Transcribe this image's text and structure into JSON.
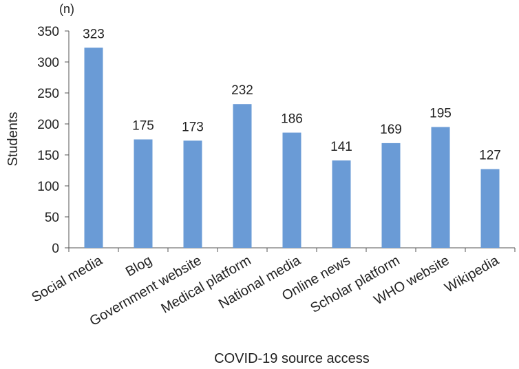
{
  "chart_data": {
    "type": "bar",
    "categories": [
      "Social media",
      "Blog",
      "Government website",
      "Medical platform",
      "National media",
      "Online news",
      "Scholar platform",
      "WHO website",
      "Wikipedia"
    ],
    "values": [
      323,
      175,
      173,
      232,
      186,
      141,
      169,
      195,
      127
    ],
    "xlabel": "COVID-19 source access",
    "ylabel": "Students",
    "unit_label": "(n)",
    "ylim": [
      0,
      350
    ],
    "yticks": [
      0,
      50,
      100,
      150,
      200,
      250,
      300,
      350
    ],
    "bar_color": "#6a9bd6",
    "grid": false,
    "legend": "none"
  }
}
